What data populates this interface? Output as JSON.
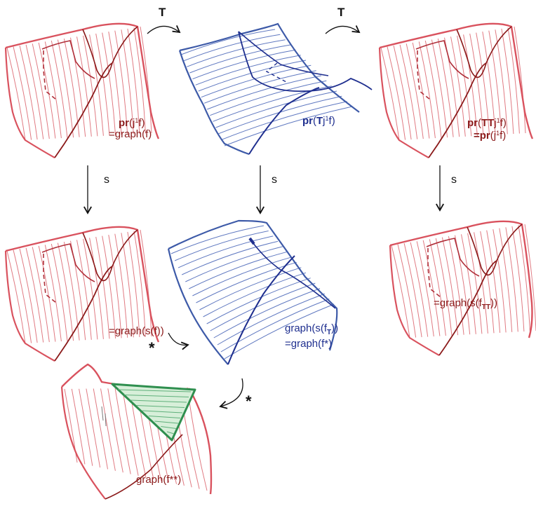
{
  "colors": {
    "red_surface": "#d9525e",
    "red_dark": "#8b1a1a",
    "blue_surface": "#3d5aa8",
    "blue_text": "#1f2f8f",
    "green_patch": "#2f8f4f",
    "arrow": "#111111"
  },
  "arrows": {
    "t_left": "T",
    "t_right": "T",
    "s_left": "s",
    "s_mid": "s",
    "s_right": "s",
    "star_mid": "*",
    "star_bottom": "*"
  },
  "labels": {
    "top_left": {
      "pr": "pr",
      "paren_open": "(j",
      "sup": "1",
      "rest": "f)",
      "line2": "=graph(f)"
    },
    "top_mid": {
      "pr": "pr",
      "paren_open": "(",
      "T": "T",
      "j": "j",
      "sup": "1",
      "rest": "f)"
    },
    "top_right": {
      "pr": "pr",
      "paren_open": "(",
      "TT": "TT",
      "j": "j",
      "sup": "1",
      "rest": "f)",
      "line2_eq": "=",
      "line2_pr": "pr",
      "line2_paren": "(j",
      "line2_sup": "1",
      "line2_rest": "f)"
    },
    "mid_left": "=graph(s(f))",
    "mid_center": {
      "line1_pre": "graph(s(f",
      "line1_sub": "T",
      "line1_post": "))",
      "line2": "=graph(f*)"
    },
    "mid_right": {
      "pre": "=graph(s(f",
      "sub": "TT",
      "post": "))"
    },
    "bottom": "graph(f**)"
  }
}
